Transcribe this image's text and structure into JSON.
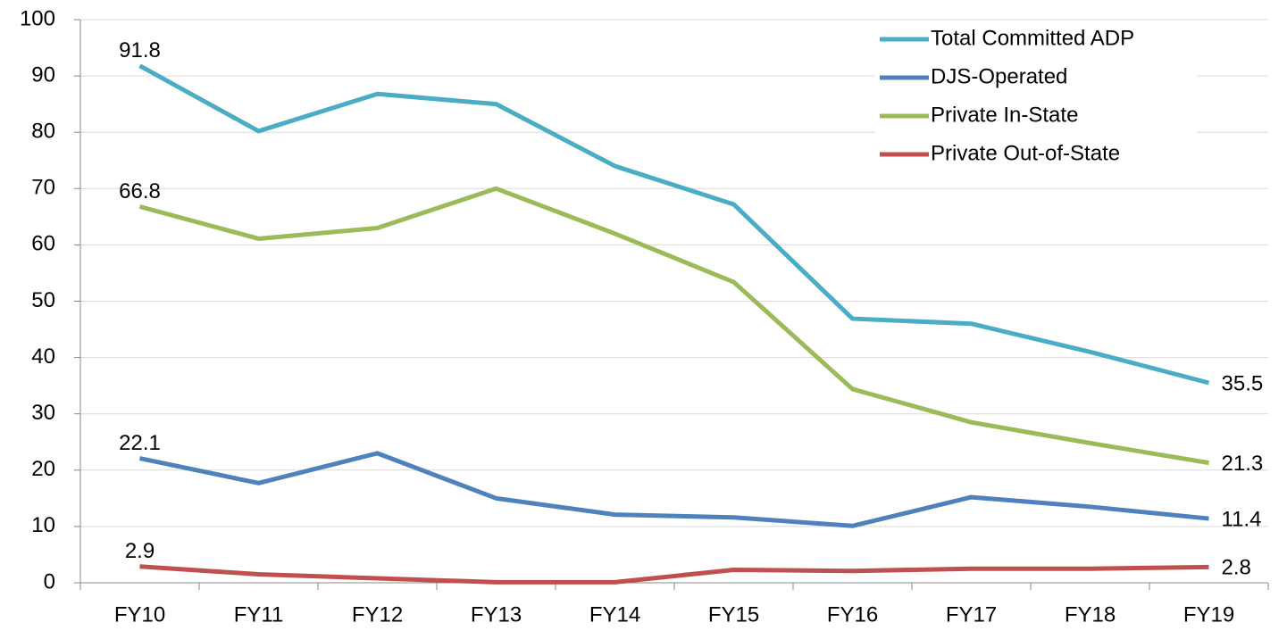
{
  "chart_data": {
    "type": "line",
    "categories": [
      "FY10",
      "FY11",
      "FY12",
      "FY13",
      "FY14",
      "FY15",
      "FY16",
      "FY17",
      "FY18",
      "FY19"
    ],
    "series": [
      {
        "name": "Total Committed ADP",
        "color": "#4bacc6",
        "values": [
          91.8,
          80.2,
          86.8,
          85.0,
          74.0,
          67.2,
          46.9,
          46.0,
          41.0,
          35.5
        ]
      },
      {
        "name": "DJS-Operated",
        "color": "#4f81bd",
        "values": [
          22.1,
          17.7,
          23.0,
          15.0,
          12.1,
          11.6,
          10.1,
          15.2,
          13.5,
          11.4
        ]
      },
      {
        "name": "Private In-State",
        "color": "#9bbb59",
        "values": [
          66.8,
          61.1,
          63.0,
          70.0,
          62.0,
          53.4,
          34.4,
          28.5,
          24.8,
          21.3
        ]
      },
      {
        "name": "Private Out-of-State",
        "color": "#c0504d",
        "values": [
          2.9,
          1.5,
          0.8,
          0.1,
          0.1,
          2.3,
          2.1,
          2.5,
          2.5,
          2.8
        ]
      }
    ],
    "ylim": [
      0,
      100
    ],
    "yticks": [
      0,
      10,
      20,
      30,
      40,
      50,
      60,
      70,
      80,
      90,
      100
    ],
    "grid": true,
    "legend": "top-right",
    "data_labels": "ends"
  }
}
